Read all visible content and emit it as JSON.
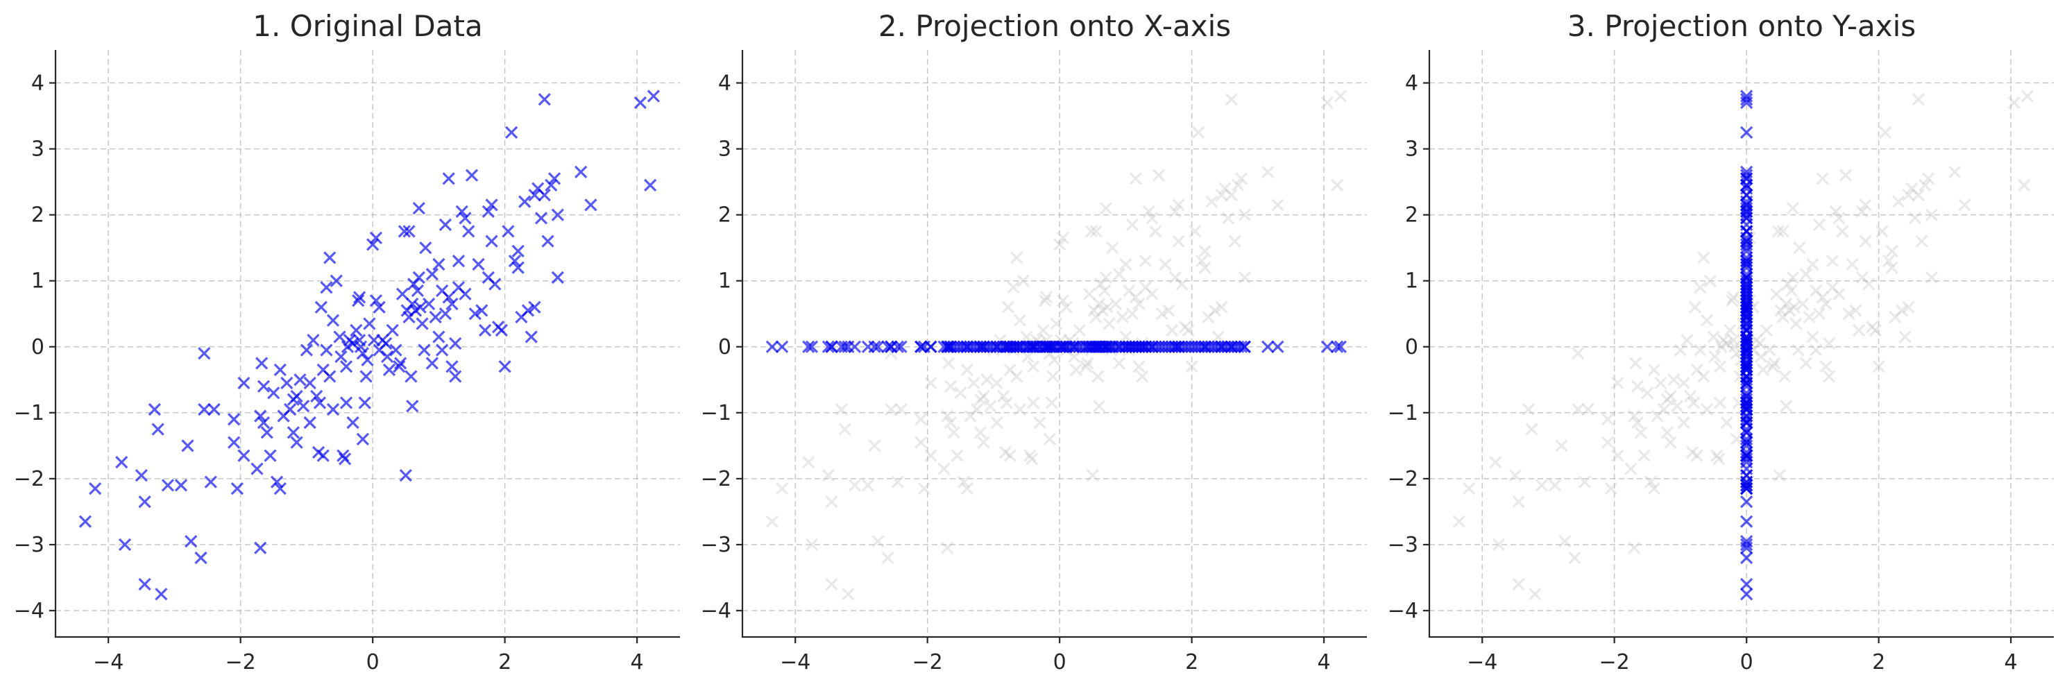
{
  "figure": {
    "background": "#ffffff",
    "point_color": "#0000ee",
    "ghost_color": "#bfbfbf"
  },
  "chart_data": [
    {
      "type": "scatter",
      "title": "1. Original Data",
      "xlabel": "",
      "ylabel": "",
      "xlim": [
        -4.8,
        4.65
      ],
      "ylim": [
        -4.4,
        4.5
      ],
      "xticks": [
        -4,
        -2,
        0,
        2,
        4
      ],
      "yticks": [
        -4,
        -3,
        -2,
        -1,
        0,
        1,
        2,
        3,
        4
      ],
      "grid": true,
      "marker": "x",
      "projection": "none"
    },
    {
      "type": "scatter",
      "title": "2. Projection onto X-axis",
      "xlabel": "",
      "ylabel": "",
      "xlim": [
        -4.8,
        4.65
      ],
      "ylim": [
        -4.4,
        4.5
      ],
      "xticks": [
        -4,
        -2,
        0,
        2,
        4
      ],
      "yticks": [
        -4,
        -3,
        -2,
        -1,
        0,
        1,
        2,
        3,
        4
      ],
      "grid": true,
      "marker": "x",
      "projection": "x",
      "background_points": "faded original data"
    },
    {
      "type": "scatter",
      "title": "3. Projection onto Y-axis",
      "xlabel": "",
      "ylabel": "",
      "xlim": [
        -4.8,
        4.65
      ],
      "ylim": [
        -4.4,
        4.5
      ],
      "xticks": [
        -4,
        -2,
        0,
        2,
        4
      ],
      "yticks": [
        -4,
        -3,
        -2,
        -1,
        0,
        1,
        2,
        3,
        4
      ],
      "grid": true,
      "marker": "x",
      "projection": "y",
      "background_points": "faded original data"
    }
  ],
  "points": [
    [
      -4.35,
      -2.65
    ],
    [
      -4.2,
      -2.15
    ],
    [
      -3.8,
      -1.75
    ],
    [
      -3.75,
      -3.0
    ],
    [
      -3.5,
      -1.95
    ],
    [
      -3.45,
      -2.35
    ],
    [
      -3.45,
      -3.6
    ],
    [
      -3.3,
      -0.95
    ],
    [
      -3.25,
      -1.25
    ],
    [
      -3.2,
      -3.75
    ],
    [
      -3.1,
      -2.1
    ],
    [
      -2.9,
      -2.1
    ],
    [
      -2.8,
      -1.5
    ],
    [
      -2.75,
      -2.95
    ],
    [
      -2.6,
      -3.2
    ],
    [
      -2.55,
      -0.1
    ],
    [
      -2.55,
      -0.95
    ],
    [
      -2.45,
      -2.05
    ],
    [
      -2.4,
      -0.95
    ],
    [
      -2.1,
      -1.1
    ],
    [
      -2.1,
      -1.45
    ],
    [
      -2.05,
      -2.15
    ],
    [
      -1.95,
      -0.55
    ],
    [
      -1.95,
      -1.65
    ],
    [
      -1.75,
      -1.85
    ],
    [
      -1.7,
      -1.05
    ],
    [
      -1.7,
      -3.05
    ],
    [
      -1.68,
      -0.25
    ],
    [
      -1.65,
      -1.15
    ],
    [
      -1.65,
      -0.6
    ],
    [
      -1.6,
      -1.3
    ],
    [
      -1.55,
      -1.65
    ],
    [
      -1.5,
      -0.7
    ],
    [
      -1.45,
      -2.05
    ],
    [
      -1.4,
      -2.15
    ],
    [
      -1.4,
      -0.35
    ],
    [
      -1.35,
      -1.05
    ],
    [
      -1.3,
      -0.55
    ],
    [
      -1.25,
      -0.95
    ],
    [
      -1.2,
      -1.3
    ],
    [
      -1.15,
      -1.45
    ],
    [
      -1.15,
      -0.75
    ],
    [
      -1.1,
      -0.5
    ],
    [
      -1.05,
      -0.9
    ],
    [
      -1.0,
      -0.05
    ],
    [
      -0.95,
      -1.15
    ],
    [
      -0.95,
      -0.55
    ],
    [
      -0.9,
      0.1
    ],
    [
      -0.85,
      -0.75
    ],
    [
      -0.82,
      -1.6
    ],
    [
      -0.8,
      -0.85
    ],
    [
      -0.78,
      0.6
    ],
    [
      -0.75,
      -1.65
    ],
    [
      -0.75,
      -0.35
    ],
    [
      -0.7,
      0.9
    ],
    [
      -0.7,
      -0.05
    ],
    [
      -0.65,
      -0.45
    ],
    [
      -0.65,
      1.35
    ],
    [
      -0.6,
      -0.95
    ],
    [
      -0.6,
      0.4
    ],
    [
      -0.55,
      1.0
    ],
    [
      -0.5,
      0.15
    ],
    [
      -0.48,
      -0.15
    ],
    [
      -0.45,
      -1.65
    ],
    [
      -0.42,
      -1.7
    ],
    [
      -0.4,
      -0.85
    ],
    [
      -0.4,
      -0.3
    ],
    [
      -0.38,
      0.0
    ],
    [
      -0.35,
      0.1
    ],
    [
      -0.3,
      -1.15
    ],
    [
      -0.25,
      0.25
    ],
    [
      -0.22,
      0.7
    ],
    [
      -0.2,
      0.75
    ],
    [
      -0.2,
      0.1
    ],
    [
      -0.18,
      0.0
    ],
    [
      -0.15,
      -1.4
    ],
    [
      -0.15,
      -0.1
    ],
    [
      -0.12,
      -0.85
    ],
    [
      -0.1,
      -0.45
    ],
    [
      -0.08,
      -0.2
    ],
    [
      -0.05,
      0.35
    ],
    [
      0.0,
      1.55
    ],
    [
      0.02,
      0.1
    ],
    [
      0.05,
      0.7
    ],
    [
      0.05,
      1.65
    ],
    [
      0.1,
      -0.05
    ],
    [
      0.15,
      0.1
    ],
    [
      0.2,
      0.05
    ],
    [
      0.22,
      -0.15
    ],
    [
      0.25,
      -0.35
    ],
    [
      0.3,
      0.25
    ],
    [
      0.35,
      -0.05
    ],
    [
      0.4,
      -0.3
    ],
    [
      0.42,
      -0.25
    ],
    [
      0.45,
      0.8
    ],
    [
      0.48,
      1.75
    ],
    [
      0.5,
      -1.95
    ],
    [
      0.52,
      0.55
    ],
    [
      0.55,
      0.45
    ],
    [
      0.55,
      1.75
    ],
    [
      0.58,
      -0.45
    ],
    [
      0.6,
      0.65
    ],
    [
      0.6,
      -0.9
    ],
    [
      0.62,
      0.95
    ],
    [
      0.65,
      0.55
    ],
    [
      0.68,
      0.85
    ],
    [
      0.7,
      2.1
    ],
    [
      0.72,
      0.6
    ],
    [
      0.75,
      0.35
    ],
    [
      0.78,
      -0.05
    ],
    [
      0.8,
      1.5
    ],
    [
      0.85,
      0.65
    ],
    [
      0.9,
      -0.25
    ],
    [
      0.9,
      1.1
    ],
    [
      0.95,
      0.45
    ],
    [
      1.0,
      1.25
    ],
    [
      1.05,
      -0.05
    ],
    [
      1.05,
      0.85
    ],
    [
      1.1,
      1.85
    ],
    [
      1.1,
      0.5
    ],
    [
      1.15,
      0.75
    ],
    [
      1.15,
      2.55
    ],
    [
      1.2,
      -0.3
    ],
    [
      1.2,
      0.65
    ],
    [
      1.25,
      -0.45
    ],
    [
      1.25,
      0.05
    ],
    [
      1.3,
      1.3
    ],
    [
      1.3,
      0.9
    ],
    [
      1.35,
      2.05
    ],
    [
      1.4,
      1.95
    ],
    [
      1.45,
      1.75
    ],
    [
      1.5,
      2.6
    ],
    [
      1.55,
      0.5
    ],
    [
      1.6,
      1.25
    ],
    [
      1.65,
      0.55
    ],
    [
      1.7,
      0.25
    ],
    [
      1.75,
      2.05
    ],
    [
      1.75,
      1.05
    ],
    [
      1.8,
      2.15
    ],
    [
      1.85,
      0.95
    ],
    [
      1.9,
      0.3
    ],
    [
      1.95,
      0.25
    ],
    [
      2.0,
      -0.3
    ],
    [
      2.05,
      1.75
    ],
    [
      2.1,
      3.25
    ],
    [
      2.15,
      1.3
    ],
    [
      2.2,
      1.2
    ],
    [
      2.25,
      0.45
    ],
    [
      2.3,
      2.2
    ],
    [
      2.35,
      0.55
    ],
    [
      2.4,
      0.15
    ],
    [
      2.45,
      0.6
    ],
    [
      2.5,
      2.4
    ],
    [
      2.55,
      1.95
    ],
    [
      2.6,
      3.75
    ],
    [
      2.65,
      1.6
    ],
    [
      2.7,
      2.45
    ],
    [
      2.75,
      2.55
    ],
    [
      2.8,
      2.0
    ],
    [
      2.8,
      1.05
    ],
    [
      2.6,
      2.3
    ],
    [
      3.15,
      2.65
    ],
    [
      3.3,
      2.15
    ],
    [
      4.05,
      3.7
    ],
    [
      4.2,
      2.45
    ],
    [
      4.25,
      3.8
    ],
    [
      2.45,
      2.3
    ],
    [
      1.0,
      0.15
    ],
    [
      -0.3,
      0.05
    ],
    [
      0.1,
      0.6
    ],
    [
      1.4,
      0.8
    ],
    [
      -1.2,
      -0.8
    ],
    [
      0.7,
      1.05
    ],
    [
      1.8,
      1.6
    ],
    [
      2.2,
      1.45
    ]
  ]
}
